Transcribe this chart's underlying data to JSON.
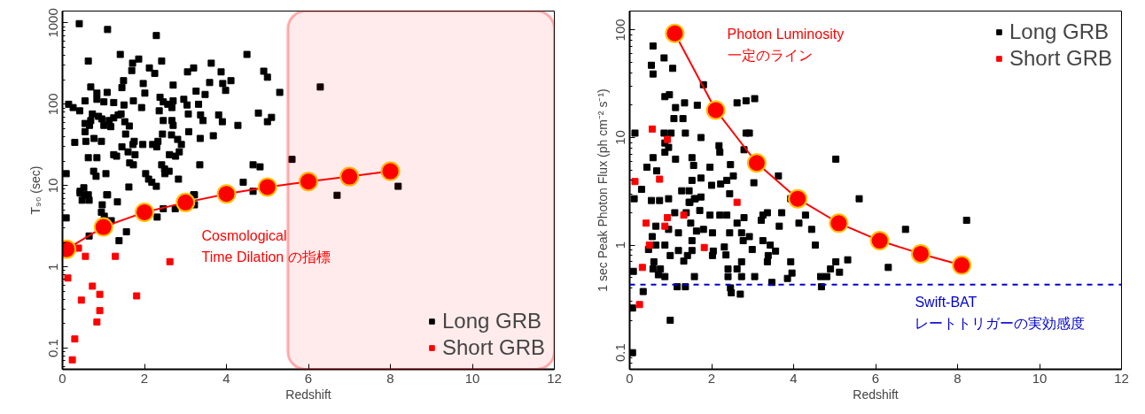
{
  "chart_data": [
    {
      "type": "scatter",
      "xlabel": "Redshift",
      "ylabel": "T₉₀ (sec)",
      "log": true,
      "grid": false,
      "legend": "bottom right",
      "xlim": [
        0,
        12
      ],
      "ylim": [
        0.055,
        1400
      ],
      "xticks": [
        0,
        2,
        4,
        6,
        8,
        10,
        12
      ],
      "yticks": [
        0.1,
        1,
        10,
        100,
        1000
      ],
      "annotations": [
        "Cosmological\nTime Dilation の指標"
      ],
      "bands": [
        {
          "axis": "x",
          "from": 5.5,
          "to": 12,
          "color": "#ff0000"
        }
      ],
      "series": [
        {
          "name": "Long GRB",
          "color": "#000000",
          "marker": "square",
          "x": [
            0.41,
            1.1,
            2.29,
            0.63,
            1.41,
            1.86,
            1.71,
            2.12,
            2.25,
            2.42,
            1.69,
            1.49,
            1.45,
            1.97,
            2.01,
            2.7,
            3.05,
            3.2,
            3.63,
            3.87,
            4.11,
            3.91,
            3.98,
            3.59,
            3.48,
            3.26,
            4.5,
            4.91,
            5.0,
            5.3,
            4.78,
            5.1,
            5.0,
            4.28,
            3.81,
            3.9,
            3.68,
            3.36,
            3.43,
            3.37,
            3.32,
            3.08,
            3.07,
            3.04,
            2.96,
            2.7,
            2.67,
            2.57,
            2.46,
            2.38,
            2.36,
            2.46,
            2.67,
            2.7,
            2.44,
            2.66,
            2.81,
            2.9,
            2.85,
            2.76,
            2.61,
            2.33,
            2.2,
            2.3,
            1.96,
            1.75,
            1.72,
            1.6,
            1.77,
            1.45,
            1.54,
            1.63,
            1.52,
            1.43,
            1.36,
            1.25,
            1.14,
            1.18,
            1.01,
            0.96,
            0.88,
            0.73,
            0.69,
            0.55,
            0.66,
            0.55,
            0.77,
            0.57,
            0.3,
            0.95,
            0.15,
            0.26,
            0.42,
            0.55,
            0.69,
            0.84,
            1.09,
            0.84,
            1.01,
            1.25,
            1.5,
            1.73,
            1.93,
            1.25,
            1.32,
            1.64,
            1.73,
            0.63,
            0.84,
            0.76,
            0.82,
            1.06,
            2.03,
            2.1,
            2.18,
            2.29,
            2.42,
            2.49,
            2.6,
            2.5,
            2.83,
            3.35,
            4.41,
            4.65,
            4.82,
            1.62,
            0.09,
            0.52,
            0.54,
            0.43,
            1.1,
            3.2,
            4.65,
            0.43,
            0.63,
            0.48,
            0.65,
            1.08,
            1.34,
            0.97,
            0.95,
            1.02,
            0.09,
            1.19,
            1.56,
            1.38,
            0.65,
            2.31,
            2.46,
            2.75,
            3.22,
            3.22,
            6.29,
            5.6,
            6.7,
            8.19
          ],
          "values": [
            980,
            830,
            700,
            340,
            410,
            360,
            320,
            280,
            240,
            340,
            260,
            195,
            160,
            180,
            137,
            172,
            250,
            280,
            320,
            250,
            195,
            180,
            148,
            185,
            132,
            145,
            410,
            255,
            215,
            140,
            78,
            69,
            61,
            55,
            74,
            61,
            41,
            38,
            63,
            74,
            100,
            46,
            76,
            98,
            115,
            110,
            91,
            100,
            107,
            122,
            83,
            63,
            63,
            55,
            43,
            42,
            37,
            32,
            26,
            23,
            24,
            35,
            32,
            30,
            32,
            35,
            32,
            26,
            24,
            30,
            43,
            54,
            61,
            76,
            74,
            68,
            63,
            53,
            55,
            66,
            71,
            76,
            63,
            58,
            55,
            46,
            38,
            35,
            34,
            35,
            100,
            91,
            83,
            110,
            163,
            137,
            140,
            115,
            107,
            105,
            98,
            110,
            91,
            24,
            23,
            19,
            18,
            22,
            22,
            15,
            13,
            14,
            14,
            12,
            11,
            9.8,
            18,
            16,
            15,
            14,
            12,
            18,
            11,
            18,
            17,
            9.6,
            14,
            9.4,
            7.7,
            8.5,
            7.7,
            7.7,
            8.5,
            8.1,
            7.7,
            6.6,
            6.6,
            7.7,
            6.3,
            5.8,
            4.7,
            4.2,
            4.0,
            3.7,
            2.7,
            2.1,
            2.4,
            4.1,
            5.2,
            5.2,
            5.8,
            7.7,
            163,
            21,
            7.6,
            9.8
          ]
        },
        {
          "name": "Short GRB",
          "color": "#ff0000",
          "marker": "square",
          "x": [
            0.39,
            0.56,
            1.29,
            2.62,
            0.13,
            0.73,
            0.46,
            0.91,
            0.91,
            0.84,
            1.81,
            0.3,
            0.24
          ],
          "values": [
            1.7,
            1.35,
            1.35,
            1.16,
            0.73,
            0.58,
            0.39,
            0.46,
            0.29,
            0.21,
            0.44,
            0.13,
            0.072
          ]
        },
        {
          "type": "line",
          "color": "#ff0000",
          "marker": "circle",
          "x": [
            0.1,
            1,
            2,
            3,
            4,
            5,
            6,
            7,
            8
          ],
          "values": [
            1.65,
            3.1,
            4.7,
            6.2,
            7.9,
            9.6,
            11.2,
            12.9,
            15
          ]
        }
      ]
    },
    {
      "type": "scatter",
      "xlabel": "Redshift",
      "ylabel": "1 sec Peak Photon Flux (ph cm⁻² s⁻¹)",
      "log": true,
      "grid": false,
      "legend": "top right",
      "xlim": [
        0,
        12
      ],
      "ylim": [
        0.07,
        150
      ],
      "xticks": [
        0,
        2,
        4,
        6,
        8,
        10,
        12
      ],
      "yticks": [
        0.1,
        1,
        10,
        100
      ],
      "annotations": [
        "Photon Luminosity\n一定のライン"
      ],
      "ref_lines": [
        {
          "axis": "y",
          "value": 0.43,
          "label": "Swift-BAT\nレートトリガーの実効感度",
          "color": "#0000cc",
          "line_style": "dashed"
        }
      ],
      "series": [
        {
          "name": "Long GRB",
          "color": "#000000",
          "marker": "square",
          "x": [
            0.57,
            0.84,
            1.05,
            0.53,
            0.57,
            1.8,
            0.86,
            0.97,
            1.12,
            1.34,
            1.65,
            1.08,
            1.3,
            1.36,
            2.62,
            2.84,
            3.05,
            2.84,
            2.92,
            0.13,
            0.84,
            1.74,
            1.01,
            0.86,
            0.95,
            0.86,
            1.12,
            2.18,
            2.2,
            2.79,
            0.57,
            0.42,
            0.66,
            1.52,
            1.56,
            1.96,
            2.46,
            2.53,
            3.63,
            3.03,
            5.03,
            1.52,
            1.74,
            2.0,
            2.22,
            2.37,
            2.44,
            1.27,
            1.45,
            0.29,
            1.47,
            1.58,
            5.6,
            3.93,
            0.11,
            0.53,
            0.73,
            0.95,
            1.45,
            1.6,
            1.74,
            1.1,
            1.38,
            1.71,
            1.96,
            2.2,
            2.37,
            0.64,
            0.95,
            1.19,
            1.49,
            1.63,
            1.8,
            2.02,
            2.44,
            2.62,
            2.79,
            2.73,
            2.92,
            2.77,
            3.25,
            3.36,
            3.21,
            3.65,
            3.71,
            4.13,
            4.29,
            4.44,
            4.53,
            3.25,
            2.99,
            3.43,
            3.56,
            3.38,
            3.36,
            0.55,
            0.64,
            0.86,
            0.99,
            1.19,
            1.32,
            1.41,
            1.52,
            1.52,
            2.02,
            2.04,
            2.31,
            2.35,
            0.46,
            0.59,
            0.57,
            0.75,
            0.7,
            0.86,
            0.09,
            2.73,
            2.4,
            2.62,
            2.4,
            2.73,
            3.05,
            1.58,
            3.93,
            3.96,
            3.85,
            3.47,
            4.66,
            4.81,
            4.9,
            5.03,
            5.12,
            5.32,
            4.68,
            1.16,
            1.36,
            2.46,
            2.48,
            2.7,
            0.33,
            0.07,
            0.99,
            0.07,
            8.22,
            6.73,
            6.31
          ],
          "values": [
            71,
            55,
            44,
            47,
            39,
            31,
            24,
            25,
            19,
            21,
            20,
            15,
            15,
            11,
            21,
            22,
            23,
            11,
            11,
            11,
            11,
            10,
            11,
            8.9,
            8.1,
            7.3,
            6.3,
            8.4,
            7.3,
            7.7,
            6.5,
            5.3,
            4.9,
            6.5,
            5.5,
            5.3,
            5.6,
            4.4,
            4.4,
            3.8,
            6.3,
            4.0,
            4.2,
            3.6,
            3.7,
            4.0,
            3.0,
            3.2,
            3.2,
            3.3,
            2.5,
            2.7,
            2.7,
            2.7,
            2.7,
            2.6,
            2.6,
            2.7,
            2.5,
            2.7,
            2.8,
            2.0,
            2.0,
            2.1,
            1.9,
            1.9,
            1.9,
            1.5,
            1.4,
            1.3,
            1.6,
            1.35,
            1.4,
            1.3,
            1.3,
            1.6,
            1.8,
            1.3,
            1.2,
            1.1,
            1.9,
            2.0,
            1.7,
            1.5,
            2.0,
            1.6,
            1.9,
            1.4,
            1.0,
            1.1,
            0.91,
            1.0,
            0.88,
            0.8,
            0.7,
            1.2,
            1.0,
            1.0,
            0.8,
            0.89,
            0.71,
            0.8,
            0.89,
            1.1,
            0.8,
            0.88,
            0.96,
            0.81,
            0.91,
            0.7,
            0.6,
            0.6,
            0.53,
            0.51,
            0.57,
            0.7,
            0.6,
            0.6,
            0.51,
            0.51,
            0.51,
            0.51,
            0.7,
            0.55,
            0.49,
            0.45,
            0.51,
            0.51,
            0.6,
            0.7,
            0.56,
            0.73,
            0.41,
            0.41,
            0.41,
            0.4,
            0.36,
            0.35,
            0.37,
            0.26,
            0.2,
            0.1,
            1.7,
            1.4,
            0.62
          ]
        },
        {
          "name": "Short GRB",
          "color": "#ff0000",
          "marker": "square",
          "x": [
            0.55,
            0.92,
            0.13,
            0.73,
            2.62,
            1.32,
            0.92,
            0.4,
            0.86,
            0.48,
            1.82,
            0.31,
            0.24
          ],
          "values": [
            12,
            9.6,
            3.9,
            4.1,
            2.5,
            1.9,
            1.8,
            1.6,
            1.5,
            1.0,
            0.95,
            0.62,
            0.28
          ]
        },
        {
          "type": "line",
          "color": "#ff0000",
          "marker": "circle",
          "x": [
            1.1,
            2.1,
            3.1,
            4.1,
            5.1,
            6.1,
            7.1,
            8.1
          ],
          "values": [
            93,
            18,
            5.8,
            2.7,
            1.6,
            1.1,
            0.83,
            0.65
          ]
        }
      ]
    }
  ]
}
